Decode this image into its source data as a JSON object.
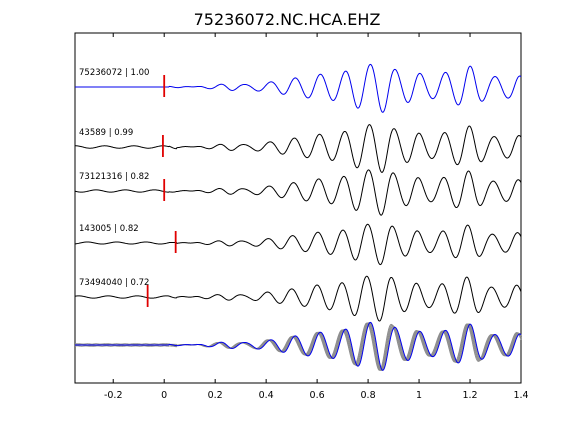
{
  "chart_data": {
    "type": "line",
    "title": "75236072.NC.HCA.EHZ",
    "xlabel": "",
    "ylabel": "",
    "xlim": [
      -0.35,
      1.4
    ],
    "x_ticks": [
      -0.2,
      0,
      0.2,
      0.4,
      0.6,
      0.8,
      1,
      1.2,
      1.4
    ],
    "x_tick_labels": [
      "-0.2",
      "0",
      "0.2",
      "0.4",
      "0.6",
      "0.8",
      "1",
      "1.2",
      "1.4"
    ],
    "grid": false,
    "colors": {
      "master": "#0000ee",
      "trace": "#000000",
      "stack": "#8c8c8c",
      "pick": "#e00000"
    },
    "traces": [
      {
        "label": "75236072 | 1.00",
        "pick_time": 0.0,
        "color": "#0000ee"
      },
      {
        "label": "43589 | 0.99",
        "pick_time": -0.005,
        "color": "#000000"
      },
      {
        "label": "73121316 | 0.82",
        "pick_time": 0.0,
        "color": "#000000"
      },
      {
        "label": "143005 | 0.82",
        "pick_time": 0.045,
        "color": "#000000"
      },
      {
        "label": "73494040 | 0.72",
        "pick_time": -0.065,
        "color": "#000000"
      }
    ],
    "overlay": {
      "label": "",
      "description": "all traces superimposed"
    }
  }
}
